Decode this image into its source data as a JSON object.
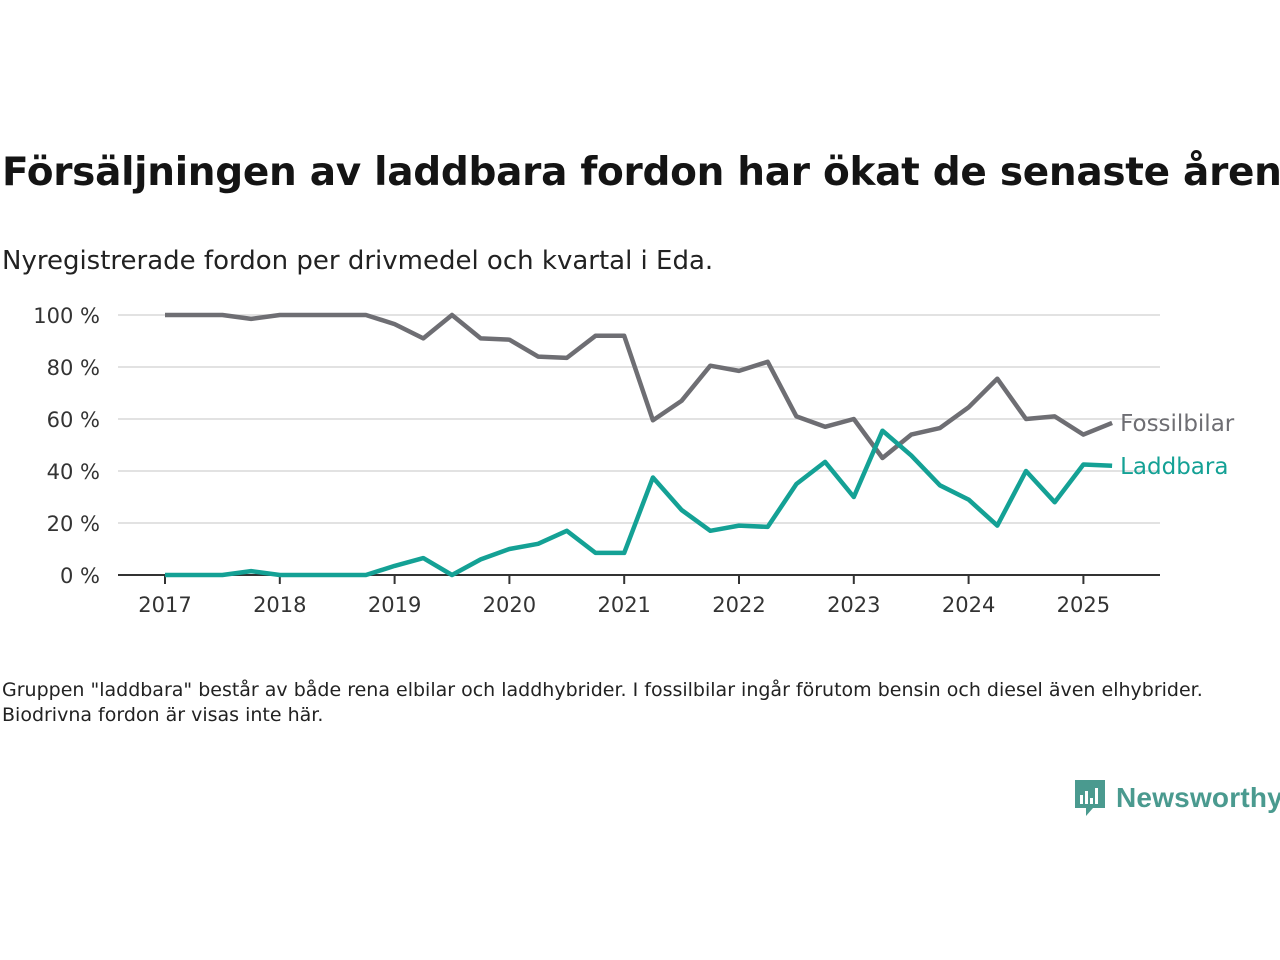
{
  "title": "Försäljningen av laddbara fordon har ökat de senaste åren",
  "subtitle": "Nyregistrerade fordon per drivmedel och kvartal i Eda.",
  "note": "Gruppen \"laddbara\" består av både rena elbilar och laddhybrider. I fossilbilar ingår förutom bensin och diesel även elhybrider. Biodrivna fordon är visas inte här.",
  "brand": {
    "name": "Newsworthy",
    "color": "#4a9a8f",
    "icon": "newsworthy-logo-icon"
  },
  "chart_data": {
    "type": "line",
    "title": "",
    "xlabel": "",
    "ylabel": "",
    "ylim": [
      0,
      100
    ],
    "yticks": [
      0,
      20,
      40,
      60,
      80,
      100
    ],
    "ytick_labels": [
      "0 %",
      "20 %",
      "40 %",
      "60 %",
      "80 %",
      "100 %"
    ],
    "xticks": [
      2017,
      2018,
      2019,
      2020,
      2021,
      2022,
      2023,
      2024,
      2025
    ],
    "xtick_labels": [
      "2017",
      "2018",
      "2019",
      "2020",
      "2021",
      "2022",
      "2023",
      "2024",
      "2025"
    ],
    "grid": true,
    "legend": "direct labels at line ends (right)",
    "x": [
      "2017-Q1",
      "2017-Q2",
      "2017-Q3",
      "2017-Q4",
      "2018-Q1",
      "2018-Q2",
      "2018-Q3",
      "2018-Q4",
      "2019-Q1",
      "2019-Q2",
      "2019-Q3",
      "2019-Q4",
      "2020-Q1",
      "2020-Q2",
      "2020-Q3",
      "2020-Q4",
      "2021-Q1",
      "2021-Q2",
      "2021-Q3",
      "2021-Q4",
      "2022-Q1",
      "2022-Q2",
      "2022-Q3",
      "2022-Q4",
      "2023-Q1",
      "2023-Q2",
      "2023-Q3",
      "2023-Q4",
      "2024-Q1",
      "2024-Q2",
      "2024-Q3",
      "2024-Q4",
      "2025-Q1",
      "2025-Q2"
    ],
    "series": [
      {
        "name": "Fossilbilar",
        "color": "#6e6e73",
        "values": [
          100,
          100,
          100,
          98.5,
          100,
          100,
          100,
          100,
          96.5,
          91,
          100,
          91,
          90.5,
          84,
          83.5,
          92,
          92,
          59.5,
          67,
          80.5,
          78.5,
          82,
          61,
          57,
          60,
          45,
          54,
          56.5,
          64.5,
          75.5,
          60,
          61,
          54,
          58.5
        ]
      },
      {
        "name": "Laddbara",
        "color": "#14a195",
        "values": [
          0,
          0,
          0,
          1.5,
          0,
          0,
          0,
          0,
          3.5,
          6.5,
          0,
          6,
          10,
          12,
          17,
          8.5,
          8.5,
          37.5,
          25,
          17,
          19,
          18.5,
          35,
          43.5,
          30,
          55.5,
          46,
          34.5,
          29,
          19,
          40,
          28,
          42.5,
          42
        ]
      }
    ]
  }
}
